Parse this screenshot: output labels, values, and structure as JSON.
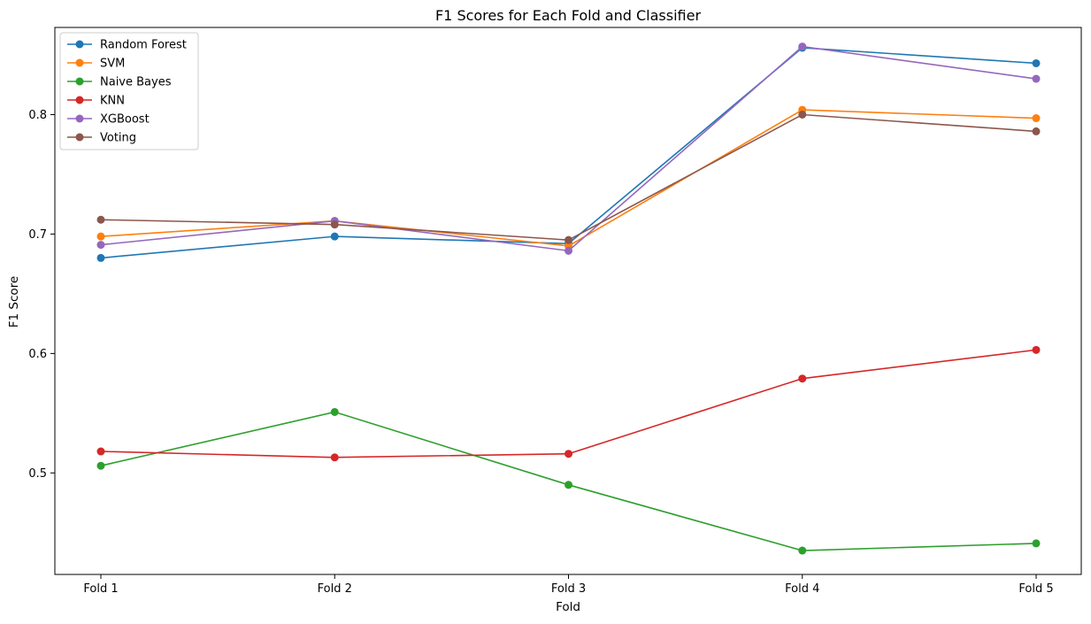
{
  "chart_data": {
    "type": "line",
    "title": "F1 Scores for Each Fold and Classifier",
    "xlabel": "Fold",
    "ylabel": "F1 Score",
    "categories": [
      "Fold 1",
      "Fold 2",
      "Fold 3",
      "Fold 4",
      "Fold 5"
    ],
    "yticks": [
      "0.5",
      "0.6",
      "0.7",
      "0.8"
    ],
    "ylim": [
      0.415,
      0.873
    ],
    "grid": false,
    "legend_position": "top-left",
    "series": [
      {
        "name": "Random Forest",
        "color": "#1f77b4",
        "values": [
          0.68,
          0.698,
          0.692,
          0.856,
          0.843
        ]
      },
      {
        "name": "SVM",
        "color": "#ff7f0e",
        "values": [
          0.698,
          0.711,
          0.69,
          0.804,
          0.797
        ]
      },
      {
        "name": "Naive Bayes",
        "color": "#2ca02c",
        "values": [
          0.506,
          0.551,
          0.49,
          0.435,
          0.441
        ]
      },
      {
        "name": "KNN",
        "color": "#d62728",
        "values": [
          0.518,
          0.513,
          0.516,
          0.579,
          0.603
        ]
      },
      {
        "name": "XGBoost",
        "color": "#9467bd",
        "values": [
          0.691,
          0.711,
          0.686,
          0.857,
          0.83
        ]
      },
      {
        "name": "Voting",
        "color": "#8c564b",
        "values": [
          0.712,
          0.708,
          0.695,
          0.8,
          0.786
        ]
      }
    ]
  }
}
